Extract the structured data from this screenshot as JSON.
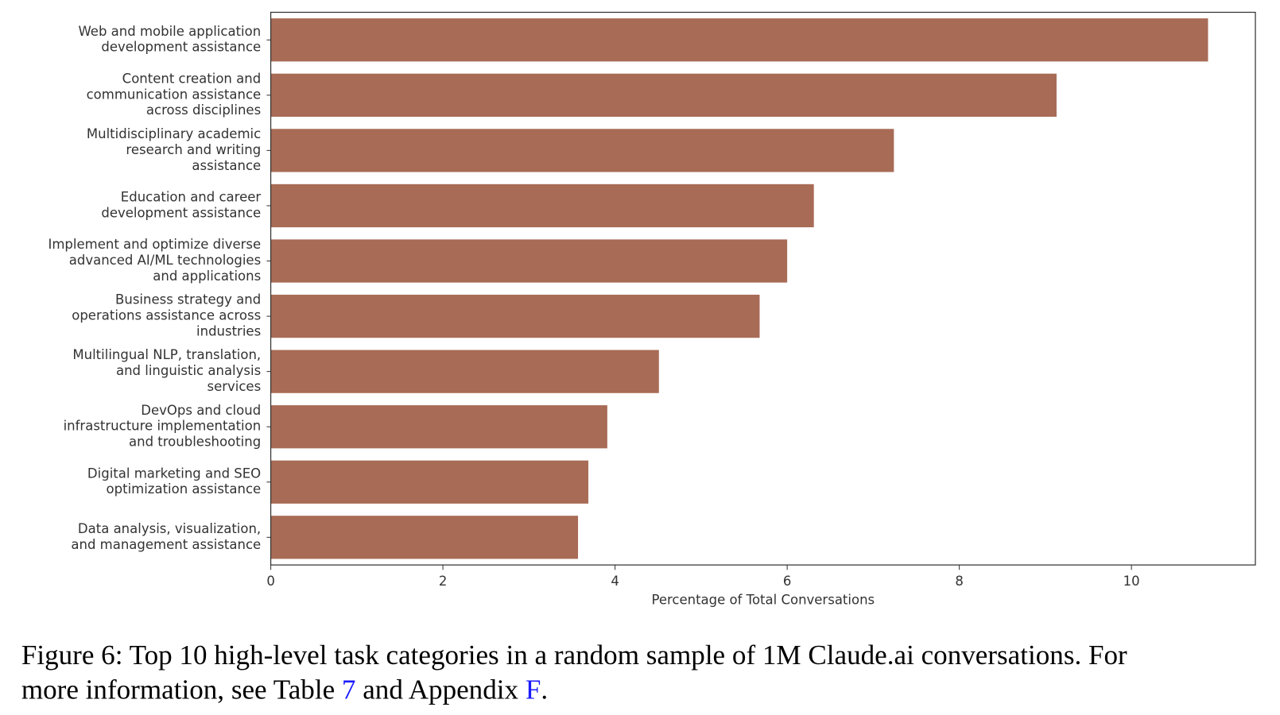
{
  "chart_data": {
    "type": "bar",
    "orientation": "horizontal",
    "categories": [
      [
        "Web and mobile application",
        "development assistance"
      ],
      [
        "Content creation and",
        "communication assistance",
        "across disciplines"
      ],
      [
        "Multidisciplinary academic",
        "research and writing",
        "assistance"
      ],
      [
        "Education and career",
        "development assistance"
      ],
      [
        "Implement and optimize diverse",
        "advanced AI/ML technologies",
        "and applications"
      ],
      [
        "Business strategy and",
        "operations assistance across",
        "industries"
      ],
      [
        "Multilingual NLP, translation,",
        "and linguistic analysis",
        "services"
      ],
      [
        "DevOps and cloud",
        "infrastructure implementation",
        "and troubleshooting"
      ],
      [
        "Digital marketing and SEO",
        "optimization assistance"
      ],
      [
        "Data analysis, visualization,",
        "and management assistance"
      ]
    ],
    "values": [
      10.89,
      9.13,
      7.24,
      6.31,
      6.0,
      5.68,
      4.51,
      3.91,
      3.69,
      3.57
    ],
    "color": "#a86b56",
    "x_label": "Percentage of Total Conversations",
    "xlim": [
      0,
      11.44
    ],
    "xticks": [
      0,
      2,
      4,
      6,
      8,
      10
    ]
  },
  "caption": {
    "before": "Figure 6: Top 10 high-level task categories in a random sample of 1M Claude.ai conversations. For",
    "line2_start": "more information, see Table ",
    "link_table": "7",
    "middle": " and Appendix ",
    "link_appendix": "F",
    "end": "."
  }
}
